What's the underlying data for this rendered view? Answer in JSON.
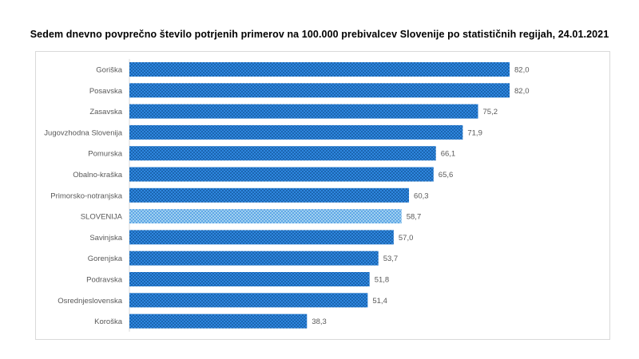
{
  "chart_data": {
    "type": "bar",
    "orientation": "horizontal",
    "title": "Sedem dnevno povprečno število potrjenih primerov na 100.000  prebivalcev Slovenije po statističnih regijah, 24.01.2021",
    "categories": [
      "Goriška",
      "Posavska",
      "Zasavska",
      "Jugovzhodna Slovenija",
      "Pomurska",
      "Obalno-kraška",
      "Primorsko-notranjska",
      "SLOVENIJA",
      "Savinjska",
      "Gorenjska",
      "Podravska",
      "Osrednjeslovenska",
      "Koroška"
    ],
    "values": [
      82.0,
      82.0,
      75.2,
      71.9,
      66.1,
      65.6,
      60.3,
      58.7,
      57.0,
      53.7,
      51.8,
      51.4,
      38.3
    ],
    "value_labels": [
      "82,0",
      "82,0",
      "75,2",
      "71,9",
      "66,1",
      "65,6",
      "60,3",
      "58,7",
      "57,0",
      "53,7",
      "51,8",
      "51,4",
      "38,3"
    ],
    "highlight_category": "SLOVENIJA",
    "xlim": [
      0,
      82
    ],
    "xlabel": "",
    "ylabel": "",
    "grid": false,
    "colors": {
      "bar": "#2e86de",
      "bar_dot": "#0b4a8a",
      "highlight_bar": "#9fd0f0",
      "highlight_dot": "#2e86de",
      "label": "#595959",
      "frame": "#d9d9d9"
    }
  }
}
